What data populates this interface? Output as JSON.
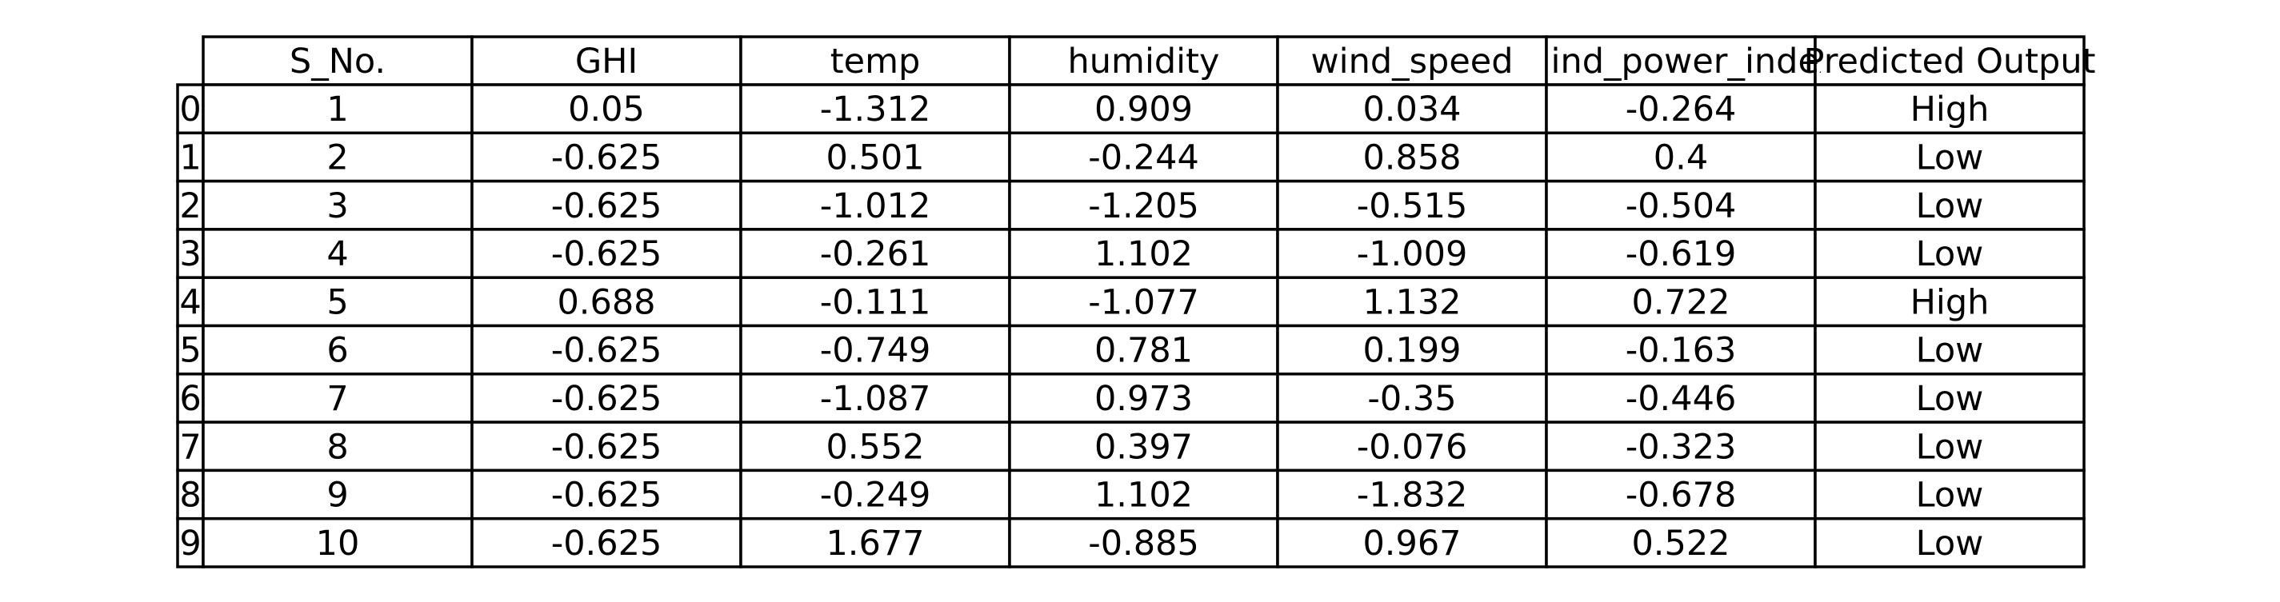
{
  "chart_data": {
    "type": "table",
    "columns": [
      "S_No.",
      "GHI",
      "temp",
      "humidity",
      "wind_speed",
      "wind_power_index",
      "Predicted Output"
    ],
    "row_labels": [
      "0",
      "1",
      "2",
      "3",
      "4",
      "5",
      "6",
      "7",
      "8",
      "9"
    ],
    "rows": [
      [
        "1",
        "0.05",
        "-1.312",
        "0.909",
        "0.034",
        "-0.264",
        "High"
      ],
      [
        "2",
        "-0.625",
        "0.501",
        "-0.244",
        "0.858",
        "0.4",
        "Low"
      ],
      [
        "3",
        "-0.625",
        "-1.012",
        "-1.205",
        "-0.515",
        "-0.504",
        "Low"
      ],
      [
        "4",
        "-0.625",
        "-0.261",
        "1.102",
        "-1.009",
        "-0.619",
        "Low"
      ],
      [
        "5",
        "0.688",
        "-0.111",
        "-1.077",
        "1.132",
        "0.722",
        "High"
      ],
      [
        "6",
        "-0.625",
        "-0.749",
        "0.781",
        "0.199",
        "-0.163",
        "Low"
      ],
      [
        "7",
        "-0.625",
        "-1.087",
        "0.973",
        "-0.35",
        "-0.446",
        "Low"
      ],
      [
        "8",
        "-0.625",
        "0.552",
        "0.397",
        "-0.076",
        "-0.323",
        "Low"
      ],
      [
        "9",
        "-0.625",
        "-0.249",
        "1.102",
        "-1.832",
        "-0.678",
        "Low"
      ],
      [
        "10",
        "-0.625",
        "1.677",
        "-0.885",
        "0.967",
        "0.522",
        "Low"
      ]
    ]
  },
  "colors": {
    "border": "#000000",
    "cell_background": "#ffffff",
    "text": "#000000"
  }
}
